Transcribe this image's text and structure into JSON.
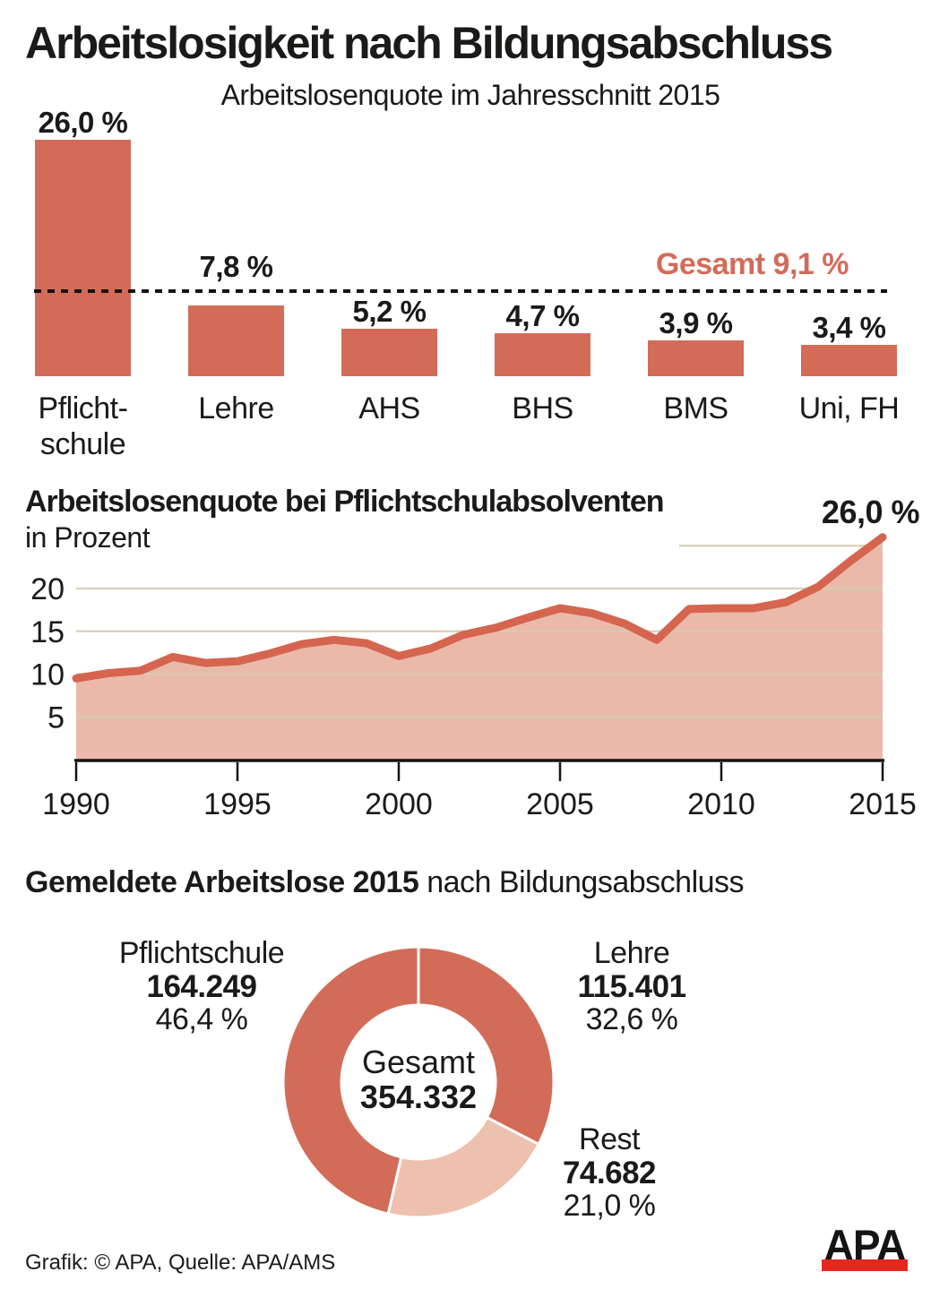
{
  "page": {
    "title": "Arbeitslosigkeit nach Bildungsabschluss",
    "footer": {
      "credit": "Grafik: © APA, Quelle: APA/AMS",
      "logo_text": "APA"
    }
  },
  "colors": {
    "accent": "#d26c58",
    "accent_line": "#d5654e",
    "area_fill": "#eab9a9",
    "light_slice": "#eec0ae",
    "grid": "#d5ccb2",
    "text": "#1a1a18",
    "logo_red": "#e5281e"
  },
  "chart_data": [
    {
      "id": "bars-2015",
      "type": "bar",
      "title": "Arbeitslosenquote im Jahresschnitt 2015",
      "categories": [
        "Pflicht-\nschule",
        "Lehre",
        "AHS",
        "BHS",
        "BMS",
        "Uni, FH"
      ],
      "values": [
        26.0,
        7.8,
        5.2,
        4.7,
        3.9,
        3.4
      ],
      "value_labels": [
        "26,0 %",
        "7,8 %",
        "5,2 %",
        "4,7 %",
        "3,9 %",
        "3,4 %"
      ],
      "reference_line": {
        "label": "Gesamt 9,1 %",
        "value": 9.1
      },
      "ylim": [
        0,
        26
      ],
      "unit": "%"
    },
    {
      "id": "trend-pflichtschule",
      "type": "area",
      "title": "Arbeitslosenquote bei Pflichtschulabsolventen",
      "subtitle": "in Prozent",
      "end_label": "26,0 %",
      "x": [
        1990,
        1991,
        1992,
        1993,
        1994,
        1995,
        1996,
        1997,
        1998,
        1999,
        2000,
        2001,
        2002,
        2003,
        2004,
        2005,
        2006,
        2007,
        2008,
        2009,
        2010,
        2011,
        2012,
        2013,
        2014,
        2015
      ],
      "values": [
        9.5,
        10.1,
        10.4,
        12.0,
        11.3,
        11.5,
        12.4,
        13.5,
        14.0,
        13.6,
        12.1,
        13.0,
        14.6,
        15.4,
        16.6,
        17.7,
        17.1,
        15.9,
        14.0,
        17.6,
        17.7,
        17.7,
        18.4,
        20.2,
        23.2,
        26.0
      ],
      "yticks": [
        5,
        10,
        15,
        20
      ],
      "partial_gridline": 25,
      "xticks": [
        1990,
        1995,
        2000,
        2005,
        2010,
        2015
      ],
      "ylim": [
        0,
        26.6
      ],
      "grid": true
    },
    {
      "id": "donut-2015",
      "type": "pie",
      "title_bold": "Gemeldete Arbeitslose 2015",
      "title_rest": " nach Bildungsabschluss",
      "center": {
        "label": "Gesamt",
        "value": "354.332"
      },
      "slices": [
        {
          "name": "Lehre",
          "value": 115401,
          "value_label": "115.401",
          "pct": 32.6,
          "pct_label": "32,6 %",
          "color_key": "accent"
        },
        {
          "name": "Rest",
          "value": 74682,
          "value_label": "74.682",
          "pct": 21.0,
          "pct_label": "21,0 %",
          "color_key": "light"
        },
        {
          "name": "Pflichtschule",
          "value": 164249,
          "value_label": "164.249",
          "pct": 46.4,
          "pct_label": "46,4 %",
          "color_key": "accent"
        }
      ]
    }
  ]
}
